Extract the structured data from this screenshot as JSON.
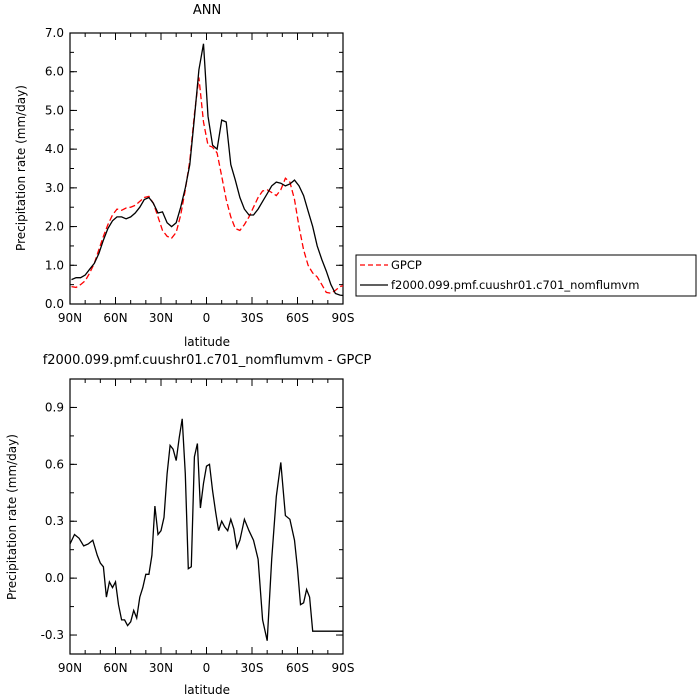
{
  "chart_data": [
    {
      "type": "line",
      "title": "ANN",
      "xlabel": "latitude",
      "ylabel": "Precipitation rate (mm/day)",
      "xlim": [
        90,
        -90
      ],
      "ylim": [
        0,
        7
      ],
      "xticks": [
        90,
        60,
        30,
        0,
        -30,
        -60,
        -90
      ],
      "xtick_labels": [
        "90N",
        "60N",
        "30N",
        "0",
        "30S",
        "60S",
        "90S"
      ],
      "yticks": [
        0,
        1,
        2,
        3,
        4,
        5,
        6,
        7
      ],
      "ytick_labels": [
        "0.0",
        "1.0",
        "2.0",
        "3.0",
        "4.0",
        "5.0",
        "6.0",
        "7.0"
      ],
      "grid": false,
      "legend_position": "right",
      "series": [
        {
          "name": "GPCP",
          "color": "#ff0000",
          "style": "dashed",
          "x": [
            89,
            86,
            83,
            80,
            77,
            74,
            71,
            68,
            65,
            62,
            59,
            56,
            53,
            50,
            47,
            44,
            41,
            38,
            35,
            32,
            29,
            26,
            23,
            20,
            17,
            14,
            11,
            8,
            5,
            2,
            -1,
            -4,
            -7,
            -10,
            -13,
            -16,
            -19,
            -22,
            -25,
            -28,
            -31,
            -34,
            -37,
            -40,
            -43,
            -46,
            -49,
            -52,
            -55,
            -58,
            -61,
            -64,
            -67,
            -70,
            -73,
            -76,
            -79,
            -82,
            -85,
            -88,
            -90
          ],
          "y": [
            0.45,
            0.43,
            0.5,
            0.6,
            0.8,
            1.05,
            1.4,
            1.75,
            2.05,
            2.3,
            2.45,
            2.42,
            2.48,
            2.5,
            2.55,
            2.65,
            2.75,
            2.78,
            2.6,
            2.25,
            1.9,
            1.75,
            1.7,
            1.85,
            2.3,
            2.95,
            3.7,
            4.9,
            5.85,
            4.7,
            4.1,
            4.05,
            3.9,
            3.3,
            2.7,
            2.25,
            1.95,
            1.9,
            2.05,
            2.25,
            2.5,
            2.75,
            2.92,
            2.95,
            2.88,
            2.8,
            2.95,
            3.25,
            3.15,
            2.7,
            2.0,
            1.4,
            1.0,
            0.8,
            0.7,
            0.5,
            0.3,
            0.28,
            0.35,
            0.45,
            0.47
          ]
        },
        {
          "name": "f2000.099.pmf.cuushr01.c701_nomflumvm",
          "color": "#000000",
          "style": "solid",
          "x": [
            89,
            86,
            83,
            80,
            77,
            74,
            71,
            68,
            65,
            62,
            59,
            56,
            53,
            50,
            47,
            44,
            41,
            38,
            35,
            32,
            29,
            26,
            23,
            20,
            17,
            14,
            11,
            8,
            5,
            2,
            -1,
            -4,
            -7,
            -10,
            -13,
            -16,
            -19,
            -22,
            -25,
            -28,
            -31,
            -34,
            -37,
            -40,
            -43,
            -46,
            -49,
            -52,
            -55,
            -58,
            -61,
            -64,
            -67,
            -70,
            -73,
            -76,
            -79,
            -82,
            -85,
            -88,
            -90
          ],
          "y": [
            0.63,
            0.68,
            0.68,
            0.75,
            0.9,
            1.05,
            1.3,
            1.65,
            1.95,
            2.15,
            2.25,
            2.25,
            2.2,
            2.25,
            2.35,
            2.5,
            2.7,
            2.75,
            2.6,
            2.35,
            2.38,
            2.1,
            2.0,
            2.1,
            2.5,
            3.0,
            3.6,
            4.8,
            6.05,
            6.72,
            4.85,
            4.1,
            4.0,
            4.75,
            4.7,
            3.6,
            3.2,
            2.75,
            2.45,
            2.3,
            2.3,
            2.45,
            2.65,
            2.85,
            3.05,
            3.15,
            3.12,
            3.05,
            3.1,
            3.2,
            3.05,
            2.8,
            2.4,
            2.0,
            1.5,
            1.15,
            0.85,
            0.5,
            0.27,
            0.23,
            0.22
          ]
        }
      ]
    },
    {
      "type": "line",
      "title": "f2000.099.pmf.cuushr01.c701_nomflumvm - GPCP",
      "xlabel": "latitude",
      "ylabel": "Precipitation rate (mm/day)",
      "xlim": [
        90,
        -90
      ],
      "ylim": [
        -0.4,
        1.05
      ],
      "xticks": [
        90,
        60,
        30,
        0,
        -30,
        -60,
        -90
      ],
      "xtick_labels": [
        "90N",
        "60N",
        "30N",
        "0",
        "30S",
        "60S",
        "90S"
      ],
      "yticks": [
        -0.3,
        0.0,
        0.3,
        0.6,
        0.9
      ],
      "ytick_labels": [
        "-0.3",
        "0.0",
        "0.3",
        "0.6",
        "0.9"
      ],
      "grid": false,
      "series": [
        {
          "color": "#000000",
          "style": "solid",
          "x": [
            90,
            87,
            84,
            81,
            78,
            75,
            72,
            70,
            68,
            66,
            64,
            62,
            60,
            58,
            56,
            54,
            52,
            50,
            48,
            46,
            44,
            42,
            40,
            38,
            36,
            34,
            32,
            30,
            28,
            26,
            24,
            22,
            20,
            18,
            16,
            14,
            12,
            10,
            8,
            6,
            4,
            2,
            0,
            -2,
            -4,
            -6,
            -8,
            -10,
            -12,
            -14,
            -16,
            -18,
            -20,
            -22,
            -25,
            -28,
            -31,
            -34,
            -37,
            -40,
            -43,
            -46,
            -49,
            -52,
            -55,
            -58,
            -60,
            -62,
            -64,
            -66,
            -68,
            -70,
            -72,
            -74,
            -76,
            -78,
            -80,
            -82,
            -84,
            -86,
            -88,
            -90
          ],
          "y": [
            0.18,
            0.23,
            0.21,
            0.17,
            0.18,
            0.2,
            0.12,
            0.08,
            0.06,
            -0.1,
            -0.02,
            -0.05,
            -0.02,
            -0.14,
            -0.22,
            -0.22,
            -0.25,
            -0.23,
            -0.17,
            -0.21,
            -0.1,
            -0.05,
            0.02,
            0.02,
            0.12,
            0.38,
            0.23,
            0.25,
            0.32,
            0.55,
            0.7,
            0.68,
            0.62,
            0.74,
            0.84,
            0.55,
            0.05,
            0.06,
            0.64,
            0.71,
            0.37,
            0.5,
            0.59,
            0.6,
            0.46,
            0.35,
            0.25,
            0.3,
            0.27,
            0.25,
            0.31,
            0.26,
            0.16,
            0.2,
            0.31,
            0.25,
            0.2,
            0.1,
            -0.22,
            -0.33,
            0.1,
            0.43,
            0.61,
            0.33,
            0.31,
            0.2,
            0.05,
            -0.14,
            -0.13,
            -0.06,
            -0.1,
            -0.28,
            -0.28,
            -0.28,
            -0.28,
            -0.28,
            -0.28,
            -0.28,
            -0.28,
            -0.28,
            -0.28,
            -0.28
          ]
        }
      ]
    }
  ]
}
